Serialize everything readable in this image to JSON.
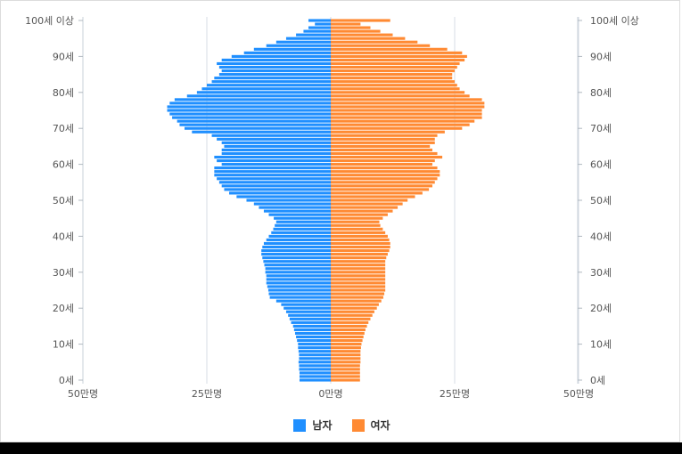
{
  "colors": {
    "male": "#1f8fff",
    "female": "#ff8a33"
  },
  "legend": {
    "male": "남자",
    "female": "여자"
  },
  "chart_data": {
    "type": "bar",
    "orientation": "horizontal-population-pyramid",
    "ages": [
      0,
      1,
      2,
      3,
      4,
      5,
      6,
      7,
      8,
      9,
      10,
      11,
      12,
      13,
      14,
      15,
      16,
      17,
      18,
      19,
      20,
      21,
      22,
      23,
      24,
      25,
      26,
      27,
      28,
      29,
      30,
      31,
      32,
      33,
      34,
      35,
      36,
      37,
      38,
      39,
      40,
      41,
      42,
      43,
      44,
      45,
      46,
      47,
      48,
      49,
      50,
      51,
      52,
      53,
      54,
      55,
      56,
      57,
      58,
      59,
      60,
      61,
      62,
      63,
      64,
      65,
      66,
      67,
      68,
      69,
      70,
      71,
      72,
      73,
      74,
      75,
      76,
      77,
      78,
      79,
      80,
      81,
      82,
      83,
      84,
      85,
      86,
      87,
      88,
      89,
      90,
      91,
      92,
      93,
      94,
      95,
      96,
      97,
      98,
      99,
      "100+"
    ],
    "y_tick_labels": [
      {
        "age": 0,
        "label": "0세"
      },
      {
        "age": 10,
        "label": "10세"
      },
      {
        "age": 20,
        "label": "20세"
      },
      {
        "age": 30,
        "label": "30세"
      },
      {
        "age": 40,
        "label": "40세"
      },
      {
        "age": 50,
        "label": "50세"
      },
      {
        "age": 60,
        "label": "60세"
      },
      {
        "age": 70,
        "label": "70세"
      },
      {
        "age": 80,
        "label": "80세"
      },
      {
        "age": 90,
        "label": "90세"
      },
      {
        "age": 100,
        "label": "100세 이상"
      }
    ],
    "x_ticks": [
      {
        "value": -50,
        "label": "50만명"
      },
      {
        "value": -25,
        "label": "25만명"
      },
      {
        "value": 0,
        "label": "0만명"
      },
      {
        "value": 25,
        "label": "25만명"
      },
      {
        "value": 50,
        "label": "50만명"
      }
    ],
    "xlim": [
      -50,
      50
    ],
    "unit": "만명",
    "series": [
      {
        "name": "남자",
        "values": [
          6.3,
          6.3,
          6.3,
          6.4,
          6.4,
          6.5,
          6.4,
          6.4,
          6.5,
          6.6,
          6.6,
          6.8,
          7.0,
          7.2,
          7.4,
          7.6,
          8.0,
          8.3,
          8.6,
          9.0,
          9.5,
          10.0,
          11.0,
          12.3,
          12.5,
          12.6,
          12.8,
          13.0,
          13.0,
          13.0,
          13.2,
          13.2,
          13.4,
          13.6,
          13.8,
          14.0,
          14.0,
          13.8,
          13.5,
          13.0,
          12.5,
          12.0,
          11.6,
          11.3,
          11.0,
          11.5,
          12.5,
          13.5,
          14.5,
          15.5,
          17.0,
          19.0,
          20.5,
          21.5,
          22.0,
          22.5,
          23.0,
          23.5,
          23.5,
          23.5,
          22.0,
          23.0,
          23.5,
          22.0,
          22.0,
          21.5,
          22.0,
          23.0,
          24.0,
          28.0,
          29.5,
          30.5,
          31.0,
          32.0,
          32.5,
          33.0,
          33.0,
          32.5,
          31.5,
          29.0,
          27.0,
          26.0,
          25.0,
          24.0,
          23.5,
          22.5,
          22.0,
          22.5,
          23.0,
          22.0,
          20.0,
          17.5,
          15.5,
          13.0,
          11.0,
          9.0,
          7.0,
          5.5,
          4.5,
          3.2,
          4.5
        ],
        "color": "#1f8fff"
      },
      {
        "name": "여자",
        "values": [
          5.9,
          5.9,
          5.9,
          5.9,
          5.9,
          6.0,
          6.0,
          6.0,
          6.0,
          6.1,
          6.2,
          6.4,
          6.6,
          6.8,
          7.0,
          7.3,
          7.6,
          8.0,
          8.4,
          8.8,
          9.3,
          9.7,
          10.2,
          10.6,
          10.8,
          11.0,
          11.0,
          11.0,
          11.0,
          11.0,
          11.0,
          11.0,
          11.0,
          11.0,
          11.2,
          11.5,
          11.8,
          12.0,
          12.0,
          11.8,
          11.5,
          11.0,
          10.5,
          10.0,
          9.8,
          10.5,
          11.5,
          12.5,
          13.5,
          14.5,
          15.5,
          17.0,
          18.5,
          19.8,
          20.5,
          21.0,
          21.5,
          22.0,
          22.0,
          21.5,
          20.5,
          21.0,
          22.5,
          21.5,
          20.5,
          20.0,
          21.0,
          21.0,
          21.5,
          23.0,
          26.5,
          28.0,
          29.0,
          30.5,
          30.5,
          30.5,
          31.0,
          31.0,
          30.5,
          28.0,
          27.0,
          26.0,
          25.5,
          25.0,
          24.5,
          24.5,
          25.0,
          25.5,
          26.0,
          27.0,
          27.5,
          26.5,
          23.5,
          20.0,
          17.5,
          15.0,
          12.5,
          10.0,
          8.0,
          6.0,
          12.0
        ],
        "color": "#ff8a33"
      }
    ],
    "grid": true,
    "legend_position": "bottom-center"
  }
}
